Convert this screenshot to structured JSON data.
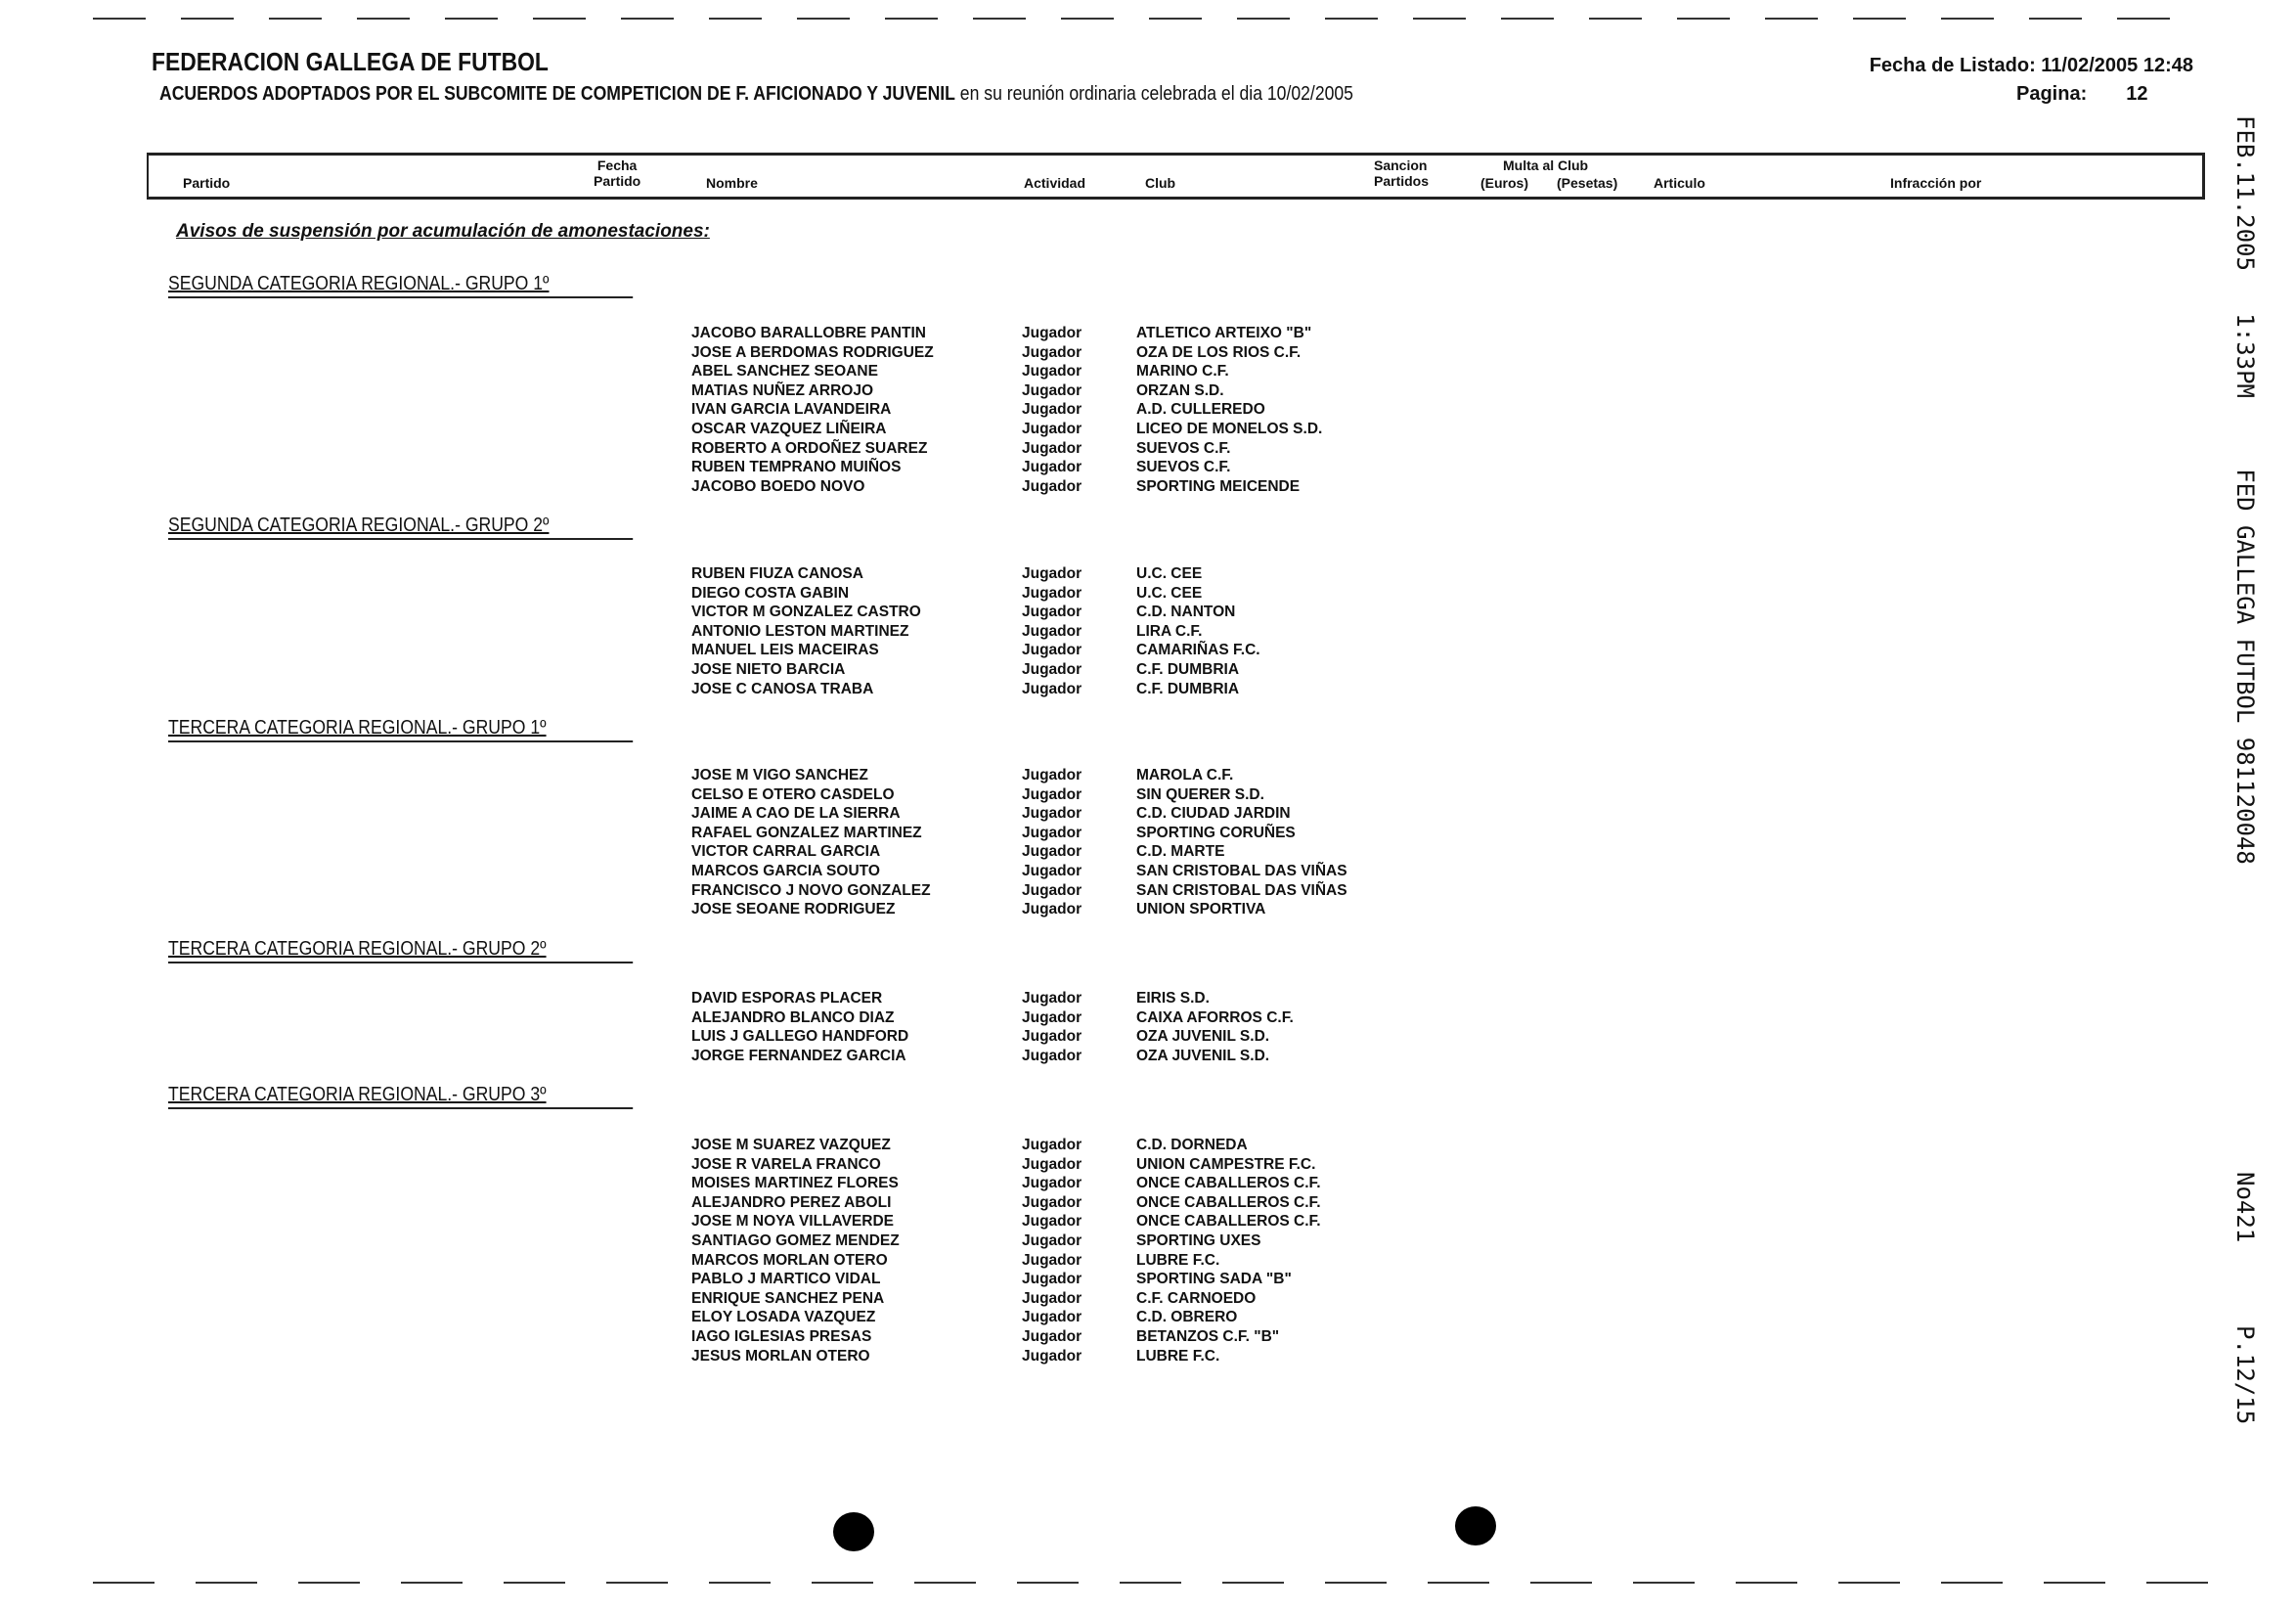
{
  "header": {
    "title": "FEDERACION GALLEGA DE FUTBOL",
    "subtitle_bold": "ACUERDOS ADOPTADOS POR EL SUBCOMITE DE COMPETICION DE F. AFICIONADO Y JUVENIL",
    "subtitle_rest": " en su reunión ordinaria celebrada el dia 10/02/2005",
    "listing_date_label": "Fecha de Listado: 11/02/2005 12:48",
    "page_label": "Pagina:",
    "page_number": "12"
  },
  "columns": {
    "partido": "Partido",
    "fecha_1": "Fecha",
    "fecha_2": "Partido",
    "nombre": "Nombre",
    "actividad": "Actividad",
    "club": "Club",
    "sancion_1": "Sancion",
    "sancion_2": "Partidos",
    "multa": "Multa al Club",
    "euros": "(Euros)",
    "pesetas": "(Pesetas)",
    "articulo": "Articulo",
    "infraccion": "Infracción por"
  },
  "section_title": "Avisos de suspensión por acumulación de amonestaciones:",
  "fax_header": {
    "line": "FEB.11.2005   1:33PM     FED GALLEGA FUTBOL 981120048",
    "number": "No421",
    "page": "P.12/15"
  },
  "groups": [
    {
      "title": "SEGUNDA CATEGORIA REGIONAL.- GRUPO 1º",
      "rows": [
        [
          "JACOBO BARALLOBRE PANTIN",
          "Jugador",
          "ATLETICO ARTEIXO \"B\""
        ],
        [
          "JOSE A BERDOMAS RODRIGUEZ",
          "Jugador",
          "OZA DE LOS RIOS C.F."
        ],
        [
          "ABEL SANCHEZ SEOANE",
          "Jugador",
          "MARINO C.F."
        ],
        [
          "MATIAS NUÑEZ ARROJO",
          "Jugador",
          "ORZAN S.D."
        ],
        [
          "IVAN GARCIA LAVANDEIRA",
          "Jugador",
          "A.D. CULLEREDO"
        ],
        [
          "OSCAR VAZQUEZ LIÑEIRA",
          "Jugador",
          "LICEO DE MONELOS S.D."
        ],
        [
          "ROBERTO A ORDOÑEZ SUAREZ",
          "Jugador",
          "SUEVOS C.F."
        ],
        [
          "RUBEN TEMPRANO MUIÑOS",
          "Jugador",
          "SUEVOS C.F."
        ],
        [
          "JACOBO BOEDO NOVO",
          "Jugador",
          "SPORTING MEICENDE"
        ]
      ]
    },
    {
      "title": "SEGUNDA CATEGORIA REGIONAL.- GRUPO 2º",
      "rows": [
        [
          "RUBEN FIUZA CANOSA",
          "Jugador",
          "U.C. CEE"
        ],
        [
          "DIEGO COSTA GABIN",
          "Jugador",
          "U.C. CEE"
        ],
        [
          "VICTOR M GONZALEZ CASTRO",
          "Jugador",
          "C.D. NANTON"
        ],
        [
          "ANTONIO LESTON MARTINEZ",
          "Jugador",
          "LIRA C.F."
        ],
        [
          "MANUEL LEIS MACEIRAS",
          "Jugador",
          "CAMARIÑAS F.C."
        ],
        [
          "JOSE NIETO BARCIA",
          "Jugador",
          "C.F. DUMBRIA"
        ],
        [
          "JOSE C CANOSA TRABA",
          "Jugador",
          "C.F. DUMBRIA"
        ]
      ]
    },
    {
      "title": "TERCERA CATEGORIA REGIONAL.- GRUPO 1º",
      "rows": [
        [
          "JOSE M VIGO SANCHEZ",
          "Jugador",
          "MAROLA C.F."
        ],
        [
          "CELSO E OTERO CASDELO",
          "Jugador",
          "SIN QUERER S.D."
        ],
        [
          "JAIME A CAO DE LA SIERRA",
          "Jugador",
          "C.D. CIUDAD JARDIN"
        ],
        [
          "RAFAEL GONZALEZ MARTINEZ",
          "Jugador",
          "SPORTING CORUÑES"
        ],
        [
          "VICTOR CARRAL GARCIA",
          "Jugador",
          "C.D. MARTE"
        ],
        [
          "MARCOS GARCIA SOUTO",
          "Jugador",
          "SAN CRISTOBAL DAS VIÑAS"
        ],
        [
          "FRANCISCO J NOVO GONZALEZ",
          "Jugador",
          "SAN CRISTOBAL DAS VIÑAS"
        ],
        [
          "JOSE SEOANE RODRIGUEZ",
          "Jugador",
          "UNION SPORTIVA"
        ]
      ]
    },
    {
      "title": "TERCERA CATEGORIA REGIONAL.- GRUPO 2º",
      "rows": [
        [
          "DAVID ESPORAS PLACER",
          "Jugador",
          "EIRIS S.D."
        ],
        [
          "ALEJANDRO BLANCO DIAZ",
          "Jugador",
          "CAIXA AFORROS C.F."
        ],
        [
          "LUIS J GALLEGO HANDFORD",
          "Jugador",
          "OZA JUVENIL S.D."
        ],
        [
          "JORGE FERNANDEZ GARCIA",
          "Jugador",
          "OZA JUVENIL S.D."
        ]
      ]
    },
    {
      "title": "TERCERA CATEGORIA REGIONAL.- GRUPO 3º",
      "rows": [
        [
          "JOSE M SUAREZ VAZQUEZ",
          "Jugador",
          "C.D. DORNEDA"
        ],
        [
          "JOSE R VARELA FRANCO",
          "Jugador",
          "UNION CAMPESTRE F.C."
        ],
        [
          "MOISES MARTINEZ FLORES",
          "Jugador",
          "ONCE CABALLEROS C.F."
        ],
        [
          "ALEJANDRO PEREZ ABOLI",
          "Jugador",
          "ONCE CABALLEROS C.F."
        ],
        [
          "JOSE M NOYA VILLAVERDE",
          "Jugador",
          "ONCE CABALLEROS C.F."
        ],
        [
          "SANTIAGO GOMEZ MENDEZ",
          "Jugador",
          "SPORTING UXES"
        ],
        [
          "MARCOS MORLAN OTERO",
          "Jugador",
          "LUBRE F.C."
        ],
        [
          "PABLO J MARTICO VIDAL",
          "Jugador",
          "SPORTING SADA \"B\""
        ],
        [
          "ENRIQUE SANCHEZ PENA",
          "Jugador",
          "C.F. CARNOEDO"
        ],
        [
          "ELOY LOSADA VAZQUEZ",
          "Jugador",
          "C.D. OBRERO"
        ],
        [
          "IAGO IGLESIAS PRESAS",
          "Jugador",
          "BETANZOS C.F. \"B\""
        ],
        [
          "JESUS MORLAN OTERO",
          "Jugador",
          "LUBRE F.C."
        ]
      ]
    }
  ]
}
